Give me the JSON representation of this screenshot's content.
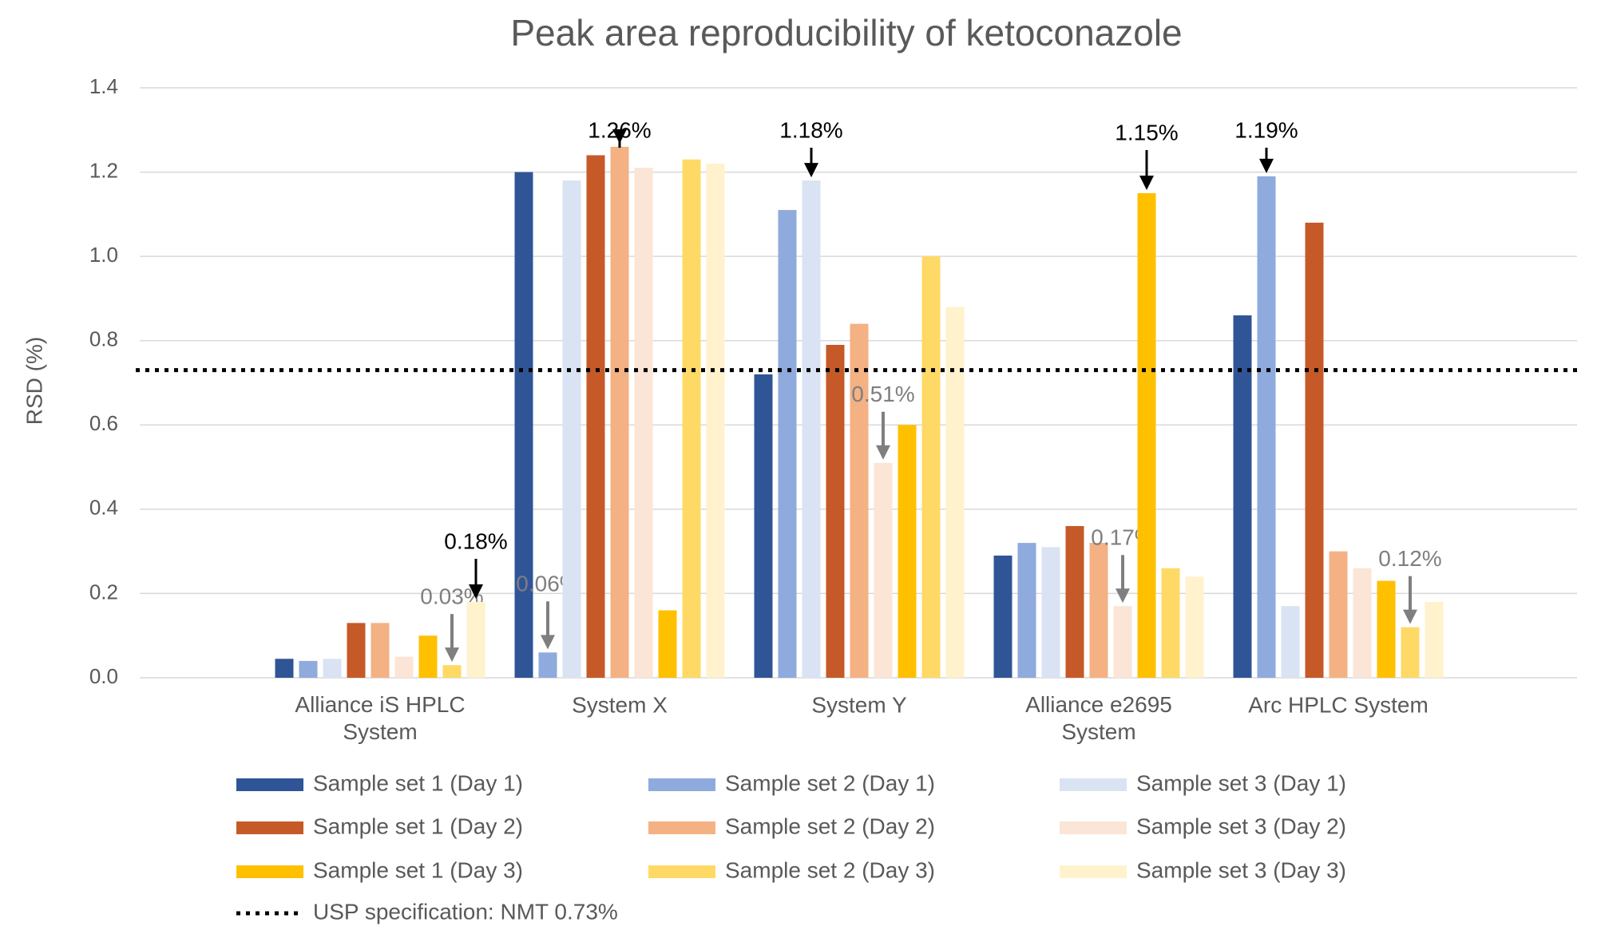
{
  "chart_data": {
    "type": "bar",
    "title": "Peak area reproducibility of ketoconazole",
    "y_label": "RSD (%)",
    "categories": [
      "Alliance iS HPLC System",
      "System X",
      "System Y",
      "Alliance e2695 System",
      "Arc HPLC System"
    ],
    "ylim": [
      0,
      1.4
    ],
    "yticks": [
      {
        "value": 0,
        "label": "0.0"
      },
      0.2,
      0.4,
      0.6,
      0.8,
      {
        "value": 1,
        "label": "1.0"
      },
      1.2,
      1.4
    ],
    "grid": true,
    "series": [
      {
        "name": "Sample set 1 (Day 1)",
        "color": "#2f5597",
        "values": [
          0.045,
          1.2,
          0.72,
          0.29,
          0.86
        ]
      },
      {
        "name": "Sample set 2 (Day 1)",
        "color": "#8faadc",
        "values": [
          0.04,
          0.06,
          1.11,
          0.32,
          1.19
        ],
        "value_labels": [
          null,
          "0.06%",
          null,
          null,
          "1.19%"
        ]
      },
      {
        "name": "Sample set 3 (Day 1)",
        "color": "#dae3f3",
        "values": [
          0.045,
          1.18,
          1.18,
          0.31,
          0.17
        ],
        "value_labels": [
          null,
          null,
          "1.18%",
          null,
          null
        ]
      },
      {
        "name": "Sample set 1 (Day 2)",
        "color": "#c55a28",
        "values": [
          0.13,
          1.24,
          0.79,
          0.36,
          1.08
        ]
      },
      {
        "name": "Sample set 2 (Day 2)",
        "color": "#f4b183",
        "values": [
          0.13,
          1.26,
          0.84,
          0.32,
          0.3
        ],
        "value_labels": [
          null,
          "1.26%",
          null,
          null,
          null
        ]
      },
      {
        "name": "Sample set 3 (Day 2)",
        "color": "#fbe5d6",
        "values": [
          0.05,
          1.21,
          0.51,
          0.17,
          0.26
        ],
        "value_labels": [
          null,
          null,
          "0.51%",
          "0.17%",
          null
        ]
      },
      {
        "name": "Sample set 1 (Day 3)",
        "color": "#ffc000",
        "values": [
          0.1,
          0.16,
          0.6,
          1.15,
          0.23
        ],
        "value_labels": [
          null,
          null,
          null,
          "1.15%",
          null
        ]
      },
      {
        "name": "Sample set 2 (Day 3)",
        "color": "#ffd966",
        "values": [
          0.03,
          1.23,
          1.0,
          0.26,
          0.12
        ],
        "value_labels": [
          "0.03%",
          null,
          null,
          null,
          "0.12%"
        ]
      },
      {
        "name": "Sample set 3 (Day 3)",
        "color": "#fff2cc",
        "values": [
          0.18,
          1.22,
          0.88,
          0.24,
          0.18
        ],
        "value_labels": [
          "0.18%",
          null,
          null,
          null,
          null
        ]
      }
    ],
    "reference_line": {
      "value": 0.73,
      "label": "USP specification: NMT 0.73%",
      "color": "#000000"
    }
  }
}
